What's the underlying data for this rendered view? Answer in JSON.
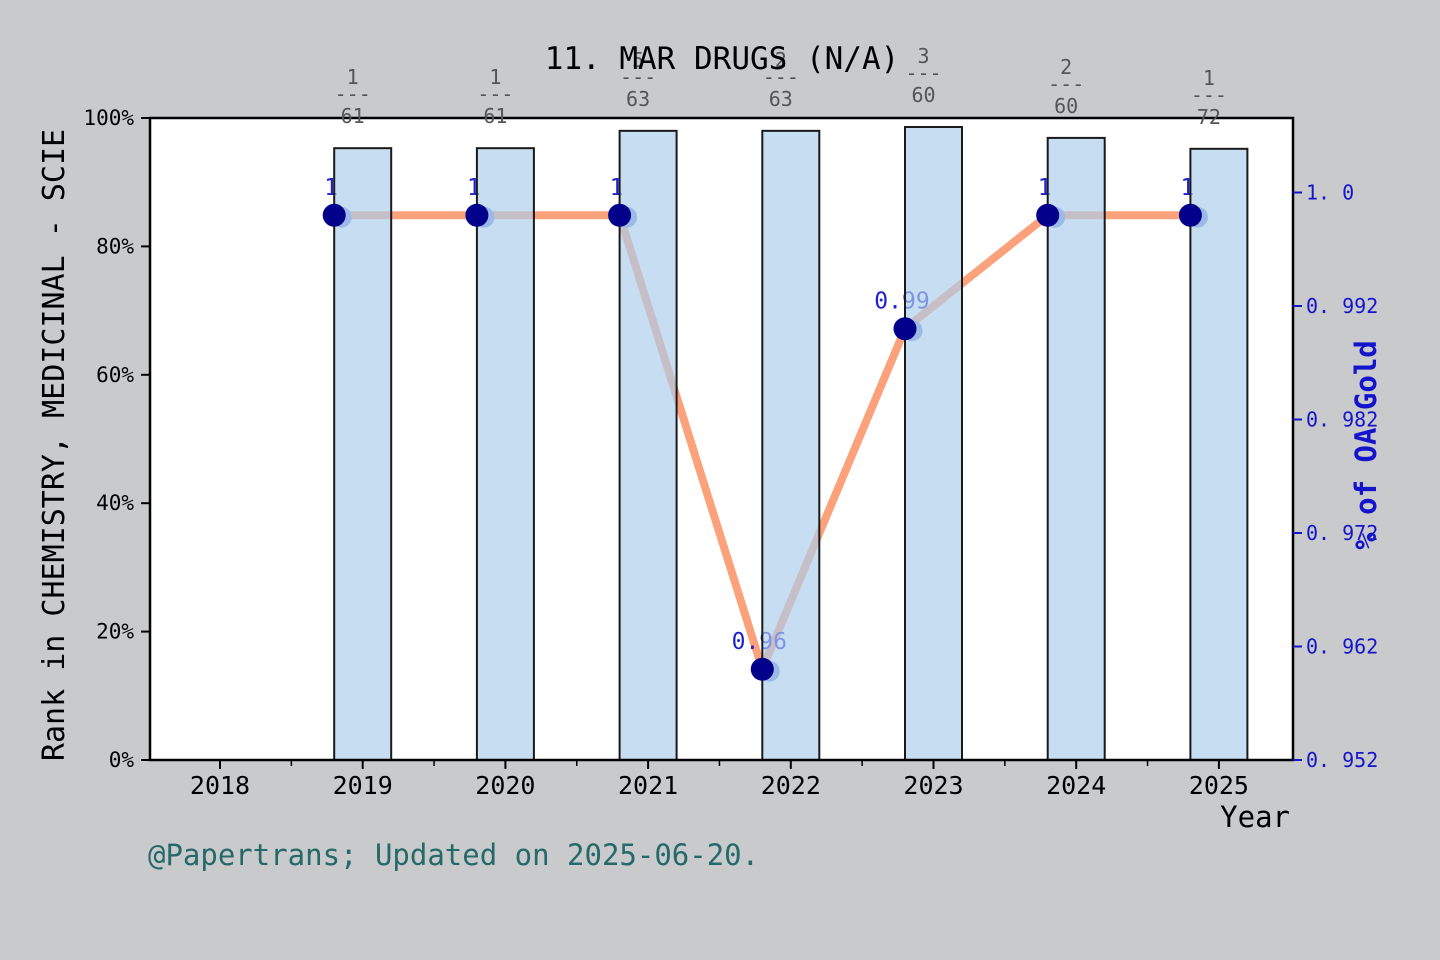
{
  "title": "11. MAR DRUGS (N/A)",
  "caption": "@Papertrans; Updated on 2025-06-20.",
  "chart_data": {
    "type": "bar+line",
    "title": "11. MAR DRUGS (N/A)",
    "xlabel": "Year",
    "x_tick_labels": [
      "2018",
      "2019",
      "2020",
      "2021",
      "2022",
      "2023",
      "2024",
      "2025"
    ],
    "left_axis": {
      "label": "Rank in CHEMISTRY, MEDICINAL - SCIE",
      "tick_labels": [
        "0%",
        "20%",
        "40%",
        "60%",
        "80%",
        "100%"
      ],
      "tick_values": [
        0,
        20,
        40,
        60,
        80,
        100
      ],
      "range": [
        0,
        100
      ],
      "grid": "off"
    },
    "right_axis": {
      "label": "% of OA Gold",
      "tick_labels": [
        "0. 952",
        "0. 962",
        "0. 972",
        "0. 982",
        "0. 992",
        "1. 0"
      ],
      "tick_values": [
        0.952,
        0.962,
        0.972,
        0.982,
        0.992,
        1.0
      ]
    },
    "bars": {
      "series_name": "Rank percentile bars",
      "years": [
        2019,
        2020,
        2021,
        2022,
        2023,
        2024,
        2025
      ],
      "heights_pct": [
        95.3,
        95.3,
        98.0,
        98.0,
        98.6,
        96.9,
        95.2
      ],
      "rank_fractions": [
        {
          "numerator": "1",
          "denominator": "61"
        },
        {
          "numerator": "1",
          "denominator": "61"
        },
        {
          "numerator": "5",
          "denominator": "63"
        },
        {
          "numerator": "2",
          "denominator": "63"
        },
        {
          "numerator": "3",
          "denominator": "60"
        },
        {
          "numerator": "2",
          "denominator": "60"
        },
        {
          "numerator": "1",
          "denominator": "72"
        }
      ],
      "fraction_dash": "---"
    },
    "line": {
      "series_name": "% of OA Gold",
      "years": [
        2019,
        2020,
        2021,
        2022,
        2023,
        2024,
        2025
      ],
      "values": [
        1.0,
        1.0,
        1.0,
        0.96,
        0.99,
        1.0,
        1.0
      ],
      "point_labels": [
        "1",
        "1",
        "1",
        "0.96",
        "0.99",
        "1",
        "1"
      ]
    },
    "colors": {
      "background": "#c8cacc",
      "plot_background": "#ffffff",
      "bar_fill_rgba": "rgba(173,205,236,0.68)",
      "bar_edge": "#1a1a1a",
      "line_orange": "#fba27c",
      "marker_navy": "#00008b",
      "marker_light": "#7b93dc",
      "point_label_blue": "#2121ce",
      "right_axis_blue": "#1414cc",
      "fraction_gray": "#555555",
      "caption_teal": "#266969",
      "axis_black": "#000000"
    }
  }
}
